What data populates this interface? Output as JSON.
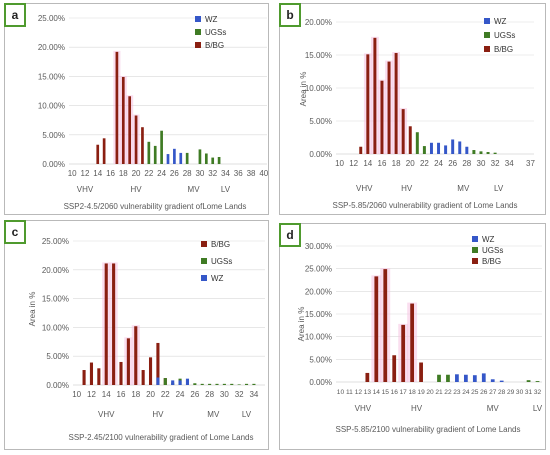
{
  "colors": {
    "bbg": "#8a1f11",
    "ugss": "#3f7b24",
    "wz": "#3557c8",
    "glow": "#f5c2e1",
    "axis_text": "#595959",
    "grid": "#d9d9d9"
  },
  "chart_data": [
    {
      "type": "bar",
      "panel_label": "a",
      "title": "SSP2-4.5/2060 vulnerability gradient ofLome Lands",
      "ylabel": "",
      "ylim": [
        0,
        25
      ],
      "yticks": [
        "0.00%",
        "5.00%",
        "10.00%",
        "15.00%",
        "20.00%",
        "25.00%"
      ],
      "x": [
        10,
        11,
        12,
        13,
        14,
        15,
        16,
        17,
        18,
        19,
        20,
        21,
        22,
        23,
        24,
        25,
        26,
        27,
        28,
        29,
        30,
        31,
        32,
        33,
        34,
        35,
        36,
        37,
        38,
        39,
        40
      ],
      "xtick_labels": [
        "10",
        "12",
        "14",
        "16",
        "18",
        "20",
        "22",
        "24",
        "26",
        "28",
        "30",
        "32",
        "34",
        "36",
        "38",
        "40"
      ],
      "xtick_values": [
        10,
        12,
        14,
        16,
        18,
        20,
        22,
        24,
        26,
        28,
        30,
        32,
        34,
        36,
        38,
        40
      ],
      "zone_labels": [
        {
          "text": "VHV",
          "x": 12
        },
        {
          "text": "HV",
          "x": 20
        },
        {
          "text": "MV",
          "x": 29
        },
        {
          "text": "LV",
          "x": 34
        }
      ],
      "legend": [
        {
          "name": "WZ",
          "color": "wz"
        },
        {
          "name": "UGSs",
          "color": "ugss"
        },
        {
          "name": "B/BG",
          "color": "bbg"
        }
      ],
      "series": [
        {
          "name": "B/BG",
          "color": "bbg",
          "values": [
            0,
            0,
            0,
            0,
            3.3,
            4.4,
            0,
            19.2,
            14.9,
            11.6,
            8.3,
            6.3,
            0,
            0,
            0,
            0,
            0,
            0,
            0,
            0,
            0,
            0,
            0,
            0,
            0,
            0,
            0,
            0,
            0,
            0,
            0
          ]
        },
        {
          "name": "UGSs",
          "color": "ugss",
          "values": [
            0,
            0,
            0,
            0,
            0,
            0,
            0,
            0,
            0,
            0,
            0,
            0,
            3.8,
            3.1,
            5.7,
            0,
            0,
            0,
            1.9,
            0,
            2.5,
            1.8,
            1.1,
            1.2,
            0,
            0,
            0,
            0,
            0,
            0,
            0
          ]
        },
        {
          "name": "WZ",
          "color": "wz",
          "values": [
            0,
            0,
            0,
            0,
            0,
            0,
            0,
            0,
            0,
            0,
            0,
            0,
            0,
            0,
            0,
            1.7,
            2.6,
            1.9,
            0,
            0,
            0,
            0,
            0,
            0,
            0,
            0,
            0,
            0,
            0,
            0,
            0
          ]
        }
      ]
    },
    {
      "type": "bar",
      "panel_label": "b",
      "title": "SSP-5.85/2060 vulnerability gradient of Lome Lands",
      "ylabel": "Area in %",
      "ylim": [
        0,
        20
      ],
      "yticks": [
        "0.00%",
        "5.00%",
        "10.00%",
        "15.00%",
        "20.00%"
      ],
      "x": [
        10,
        11,
        12,
        13,
        14,
        15,
        16,
        17,
        18,
        19,
        20,
        21,
        22,
        23,
        24,
        25,
        26,
        27,
        28,
        29,
        30,
        31,
        32,
        33,
        34,
        35,
        36,
        37
      ],
      "xtick_labels": [
        "10",
        "12",
        "14",
        "16",
        "18",
        "20",
        "22",
        "24",
        "26",
        "28",
        "30",
        "32",
        "34",
        "37"
      ],
      "xtick_values": [
        10,
        12,
        14,
        16,
        18,
        20,
        22,
        24,
        26,
        28,
        30,
        32,
        34,
        37
      ],
      "zone_labels": [
        {
          "text": "VHV",
          "x": 13.5
        },
        {
          "text": "HV",
          "x": 19.5
        },
        {
          "text": "MV",
          "x": 27.5
        },
        {
          "text": "LV",
          "x": 32.5
        }
      ],
      "legend": [
        {
          "name": "WZ",
          "color": "wz"
        },
        {
          "name": "UGSs",
          "color": "ugss"
        },
        {
          "name": "B/BG",
          "color": "bbg"
        }
      ],
      "series": [
        {
          "name": "B/BG",
          "color": "bbg",
          "values": [
            0,
            0,
            0,
            1.1,
            15.1,
            17.6,
            11.1,
            14.0,
            15.3,
            6.8,
            4.2,
            0,
            0,
            0,
            0,
            0,
            0,
            0,
            0,
            0,
            0,
            0,
            0,
            0,
            0,
            0,
            0,
            0
          ]
        },
        {
          "name": "UGSs",
          "color": "ugss",
          "values": [
            0,
            0,
            0,
            0,
            0,
            0,
            0,
            0,
            0,
            0,
            0,
            3.3,
            1.2,
            0,
            0,
            0,
            0,
            0,
            0,
            0.6,
            0.4,
            0.3,
            0.2,
            0,
            0,
            0,
            0,
            0
          ]
        },
        {
          "name": "WZ",
          "color": "wz",
          "values": [
            0,
            0,
            0,
            0,
            0,
            0,
            0,
            0,
            0,
            0,
            0,
            0,
            0,
            1.7,
            1.7,
            1.3,
            2.2,
            1.9,
            1.1,
            0,
            0,
            0,
            0,
            0,
            0,
            0,
            0,
            0
          ]
        }
      ]
    },
    {
      "type": "bar",
      "panel_label": "c",
      "title": "SSP-2.45/2100 vulnerability gradient of Lome Lands",
      "ylabel": "Area in %",
      "ylim": [
        0,
        25
      ],
      "yticks": [
        "0.00%",
        "5.00%",
        "10.00%",
        "15.00%",
        "20.00%",
        "25.00%"
      ],
      "x": [
        10,
        11,
        12,
        13,
        14,
        15,
        16,
        17,
        18,
        19,
        20,
        21,
        22,
        23,
        24,
        25,
        26,
        27,
        28,
        29,
        30,
        31,
        32,
        33,
        34,
        35
      ],
      "xtick_labels": [
        "10",
        "12",
        "14",
        "16",
        "18",
        "20",
        "22",
        "24",
        "26",
        "28",
        "30",
        "32",
        "34"
      ],
      "xtick_values": [
        10,
        12,
        14,
        16,
        18,
        20,
        22,
        24,
        26,
        28,
        30,
        32,
        34
      ],
      "zone_labels": [
        {
          "text": "VHV",
          "x": 14
        },
        {
          "text": "HV",
          "x": 21
        },
        {
          "text": "MV",
          "x": 28.5
        },
        {
          "text": "LV",
          "x": 33
        }
      ],
      "legend": [
        {
          "name": "B/BG",
          "color": "bbg"
        },
        {
          "name": "UGSs",
          "color": "ugss"
        },
        {
          "name": "WZ",
          "color": "wz"
        }
      ],
      "series": [
        {
          "name": "B/BG",
          "color": "bbg",
          "values": [
            0,
            2.6,
            3.9,
            2.9,
            21.1,
            21.1,
            4.0,
            8.1,
            10.2,
            2.6,
            4.8,
            7.3,
            1.2,
            0,
            0,
            0,
            0,
            0,
            0,
            0,
            0,
            0,
            0,
            0,
            0,
            0
          ]
        },
        {
          "name": "UGSs",
          "color": "ugss",
          "values": [
            0,
            0,
            0,
            0,
            0,
            0,
            0,
            0,
            0,
            0,
            0,
            0,
            1.2,
            0.4,
            1.1,
            0,
            0.3,
            0.2,
            0.2,
            0.2,
            0.2,
            0.2,
            0.1,
            0.2,
            0.2,
            0
          ]
        },
        {
          "name": "WZ",
          "color": "wz",
          "values": [
            0,
            0,
            0,
            0,
            0,
            0,
            0,
            0,
            0,
            0,
            0,
            1.3,
            0,
            0.8,
            0.8,
            1.1,
            0,
            0,
            0,
            0,
            0,
            0,
            0,
            0,
            0,
            0
          ]
        }
      ]
    },
    {
      "type": "bar",
      "panel_label": "d",
      "title": "SSP-5.85/2100 vulnerability gradient of Lome Lands",
      "ylabel": "Area in %",
      "ylim": [
        0,
        30
      ],
      "yticks": [
        "0.00%",
        "5.00%",
        "10.00%",
        "15.00%",
        "20.00%",
        "25.00%",
        "30.00%"
      ],
      "x": [
        10,
        11,
        12,
        13,
        14,
        15,
        16,
        17,
        18,
        19,
        20,
        21,
        22,
        23,
        24,
        25,
        26,
        27,
        28,
        29,
        30,
        31,
        32
      ],
      "xtick_labels": [
        "10",
        "11",
        "12",
        "13",
        "14",
        "15",
        "16",
        "17",
        "18",
        "19",
        "20",
        "21",
        "22",
        "23",
        "24",
        "25",
        "26",
        "27",
        "28",
        "29",
        "30",
        "31",
        "32"
      ],
      "xtick_values": [
        10,
        11,
        12,
        13,
        14,
        15,
        16,
        17,
        18,
        19,
        20,
        21,
        22,
        23,
        24,
        25,
        26,
        27,
        28,
        29,
        30,
        31,
        32
      ],
      "zone_labels": [
        {
          "text": "VHV",
          "x": 12.5
        },
        {
          "text": "HV",
          "x": 18.5
        },
        {
          "text": "MV",
          "x": 27
        },
        {
          "text": "LV",
          "x": 32
        }
      ],
      "legend": [
        {
          "name": "WZ",
          "color": "wz"
        },
        {
          "name": "UGSs",
          "color": "ugss"
        },
        {
          "name": "B/BG",
          "color": "bbg"
        }
      ],
      "series": [
        {
          "name": "B/BG",
          "color": "bbg",
          "values": [
            0,
            0,
            0,
            2.0,
            23.3,
            24.9,
            5.9,
            12.6,
            17.3,
            4.3,
            0,
            0,
            0,
            0,
            0,
            0,
            0,
            0,
            0,
            0,
            0,
            0,
            0
          ]
        },
        {
          "name": "UGSs",
          "color": "ugss",
          "values": [
            0,
            0,
            0,
            0,
            0,
            0,
            0,
            0,
            0,
            0,
            0,
            1.6,
            1.6,
            0,
            0,
            0,
            0,
            0,
            0,
            0,
            0,
            0.4,
            0.2
          ]
        },
        {
          "name": "WZ",
          "color": "wz",
          "values": [
            0,
            0,
            0,
            0,
            0,
            0,
            0,
            0,
            0,
            0,
            0,
            0,
            0,
            1.7,
            1.6,
            1.5,
            1.9,
            0.6,
            0.3,
            0,
            0,
            0,
            0
          ]
        }
      ]
    }
  ]
}
